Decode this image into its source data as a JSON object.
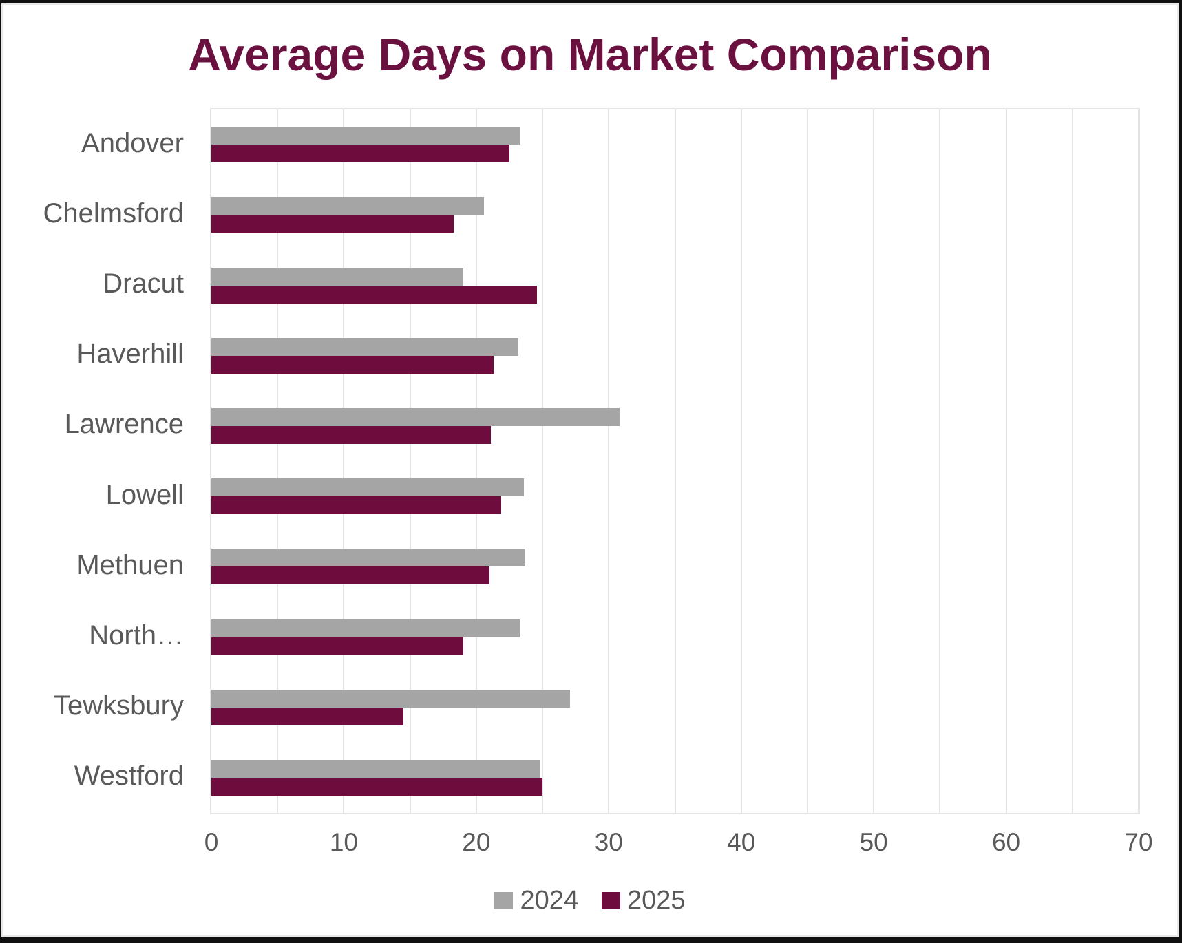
{
  "chart_data": {
    "type": "bar",
    "orientation": "horizontal",
    "title": "Average Days on Market Comparison",
    "categories": [
      "Andover",
      "Chelmsford",
      "Dracut",
      "Haverhill",
      "Lawrence",
      "Lowell",
      "Methuen",
      "North…",
      "Tewksbury",
      "Westford"
    ],
    "series": [
      {
        "name": "2024",
        "color": "#a5a5a5",
        "values": [
          23.3,
          20.6,
          19.0,
          23.2,
          30.8,
          23.6,
          23.7,
          23.3,
          27.1,
          24.8
        ]
      },
      {
        "name": "2025",
        "color": "#6f0c3e",
        "values": [
          22.5,
          18.3,
          24.6,
          21.3,
          21.1,
          21.9,
          21.0,
          19.0,
          14.5,
          25.0
        ]
      }
    ],
    "xlabel": "",
    "ylabel": "",
    "xlim": [
      0,
      70
    ],
    "x_ticks": [
      0,
      10,
      20,
      30,
      40,
      50,
      60,
      70
    ],
    "gridline_step": 5,
    "grid": "on",
    "legend_position": "bottom",
    "colors": {
      "title": "#6b1140",
      "axis_text": "#595959",
      "gridline": "#e4e4e4",
      "background": "#ffffff"
    }
  }
}
